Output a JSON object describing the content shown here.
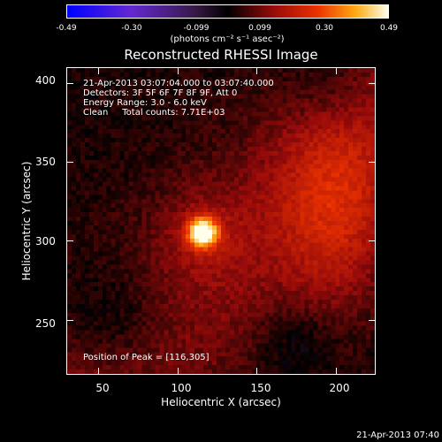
{
  "colorbar": {
    "ticks": [
      "-0.49",
      "-0.30",
      "-0.099",
      "0.099",
      "0.30",
      "0.49"
    ],
    "unit": "(photons cm⁻² s⁻¹ asec⁻²)",
    "min": -0.49,
    "max": 0.49
  },
  "chart_data": {
    "type": "heatmap",
    "title": "Reconstructed RHESSI Image",
    "xlabel": "Heliocentric X (arcsec)",
    "ylabel": "Heliocentric Y (arcsec)",
    "xlim": [
      30,
      225
    ],
    "ylim": [
      215,
      410
    ],
    "xticks": [
      50,
      100,
      150,
      200
    ],
    "yticks": [
      250,
      300,
      350,
      400
    ],
    "peak": {
      "x": 116,
      "y": 305,
      "value": 0.49
    },
    "annotations": [
      "21-Apr-2013 03:07:04.000 to 03:07:40.000",
      "Detectors: 3F 5F 6F 7F 8F 9F, Att 0",
      "Energy Range: 3.0 - 6.0 keV",
      "Clean     Total counts: 7.71E+03"
    ],
    "peak_label": "Position of Peak = [116,305]"
  },
  "timestamp": "21-Apr-2013 07:40"
}
